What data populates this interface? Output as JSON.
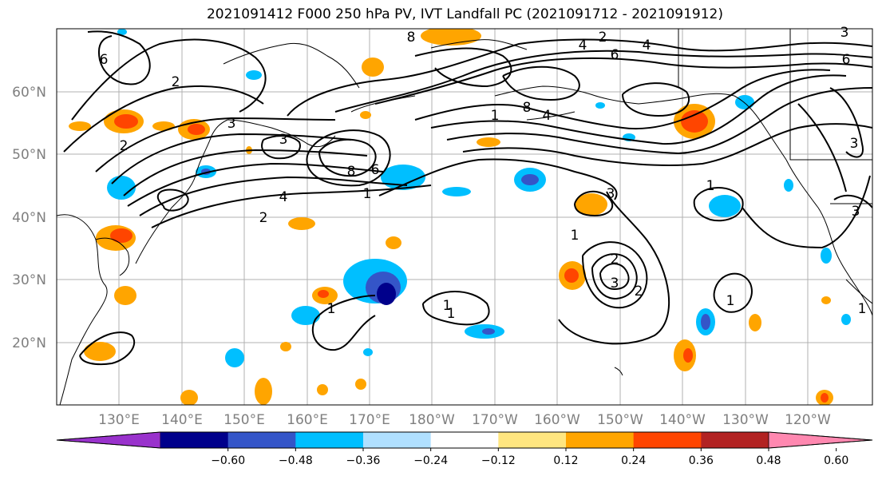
{
  "title": "2021091412 F000 250 hPa PV, IVT Landfall PC (2021091712 - 2021091912)",
  "map": {
    "lat_labels": [
      "60°N",
      "50°N",
      "40°N",
      "30°N",
      "20°N"
    ],
    "lon_labels": [
      "130°E",
      "140°E",
      "150°E",
      "160°E",
      "170°E",
      "180°W",
      "170°W",
      "160°W",
      "150°W",
      "140°W",
      "130°W",
      "120°W"
    ],
    "contour_labels": [
      "6",
      "2",
      "8",
      "2",
      "4",
      "6",
      "3",
      "2",
      "3",
      "4",
      "3",
      "8",
      "1",
      "6",
      "1",
      "4",
      "2",
      "8",
      "6",
      "3",
      "1",
      "4",
      "1",
      "3",
      "1",
      "2",
      "1",
      "1",
      "3",
      "2",
      "1",
      "3",
      "1"
    ]
  },
  "colorbar": {
    "ticks": [
      "−0.60",
      "−0.48",
      "−0.36",
      "−0.24",
      "−0.12",
      "0.12",
      "0.24",
      "0.36",
      "0.48",
      "0.60"
    ],
    "colors": [
      "#9932cc",
      "#00008b",
      "#3455c8",
      "#00bfff",
      "#b0e0ff",
      "#ffffff",
      "#ffe680",
      "#ffa500",
      "#ff4500",
      "#b22222",
      "#ff88b0"
    ]
  }
}
